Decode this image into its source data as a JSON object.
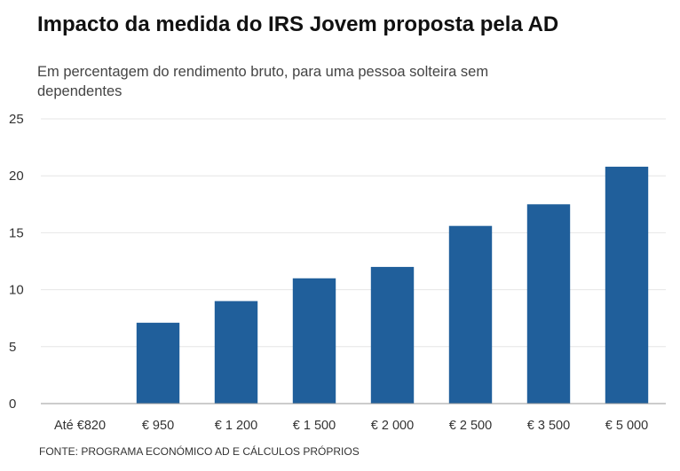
{
  "title": "Impacto da medida do IRS Jovem proposta pela AD",
  "subtitle": "Em percentagem do rendimento bruto, para uma pessoa solteira sem dependentes",
  "source": "FONTE: PROGRAMA ECONÓMICO AD E CÁLCULOS PRÓPRIOS",
  "colors": {
    "bar": "#205f9b",
    "grid": "#e6e6e6",
    "axis": "#999999"
  },
  "chart_data": {
    "type": "bar",
    "title": "Impacto da medida do IRS Jovem proposta pela AD",
    "subtitle": "Em percentagem do rendimento bruto, para uma pessoa solteira sem dependentes",
    "xlabel": "",
    "ylabel": "",
    "categories": [
      "Até €820",
      "€ 950",
      "€ 1 200",
      "€ 1 500",
      "€ 2 000",
      "€ 2 500",
      "€ 3 500",
      "€ 5 000"
    ],
    "values": [
      0,
      7.1,
      9.0,
      11.0,
      12.0,
      15.6,
      17.5,
      20.8
    ],
    "ylim": [
      0,
      25
    ],
    "yticks": [
      "0",
      "5",
      "10",
      "15",
      "20",
      "25"
    ],
    "grid": true,
    "legend": "none"
  }
}
